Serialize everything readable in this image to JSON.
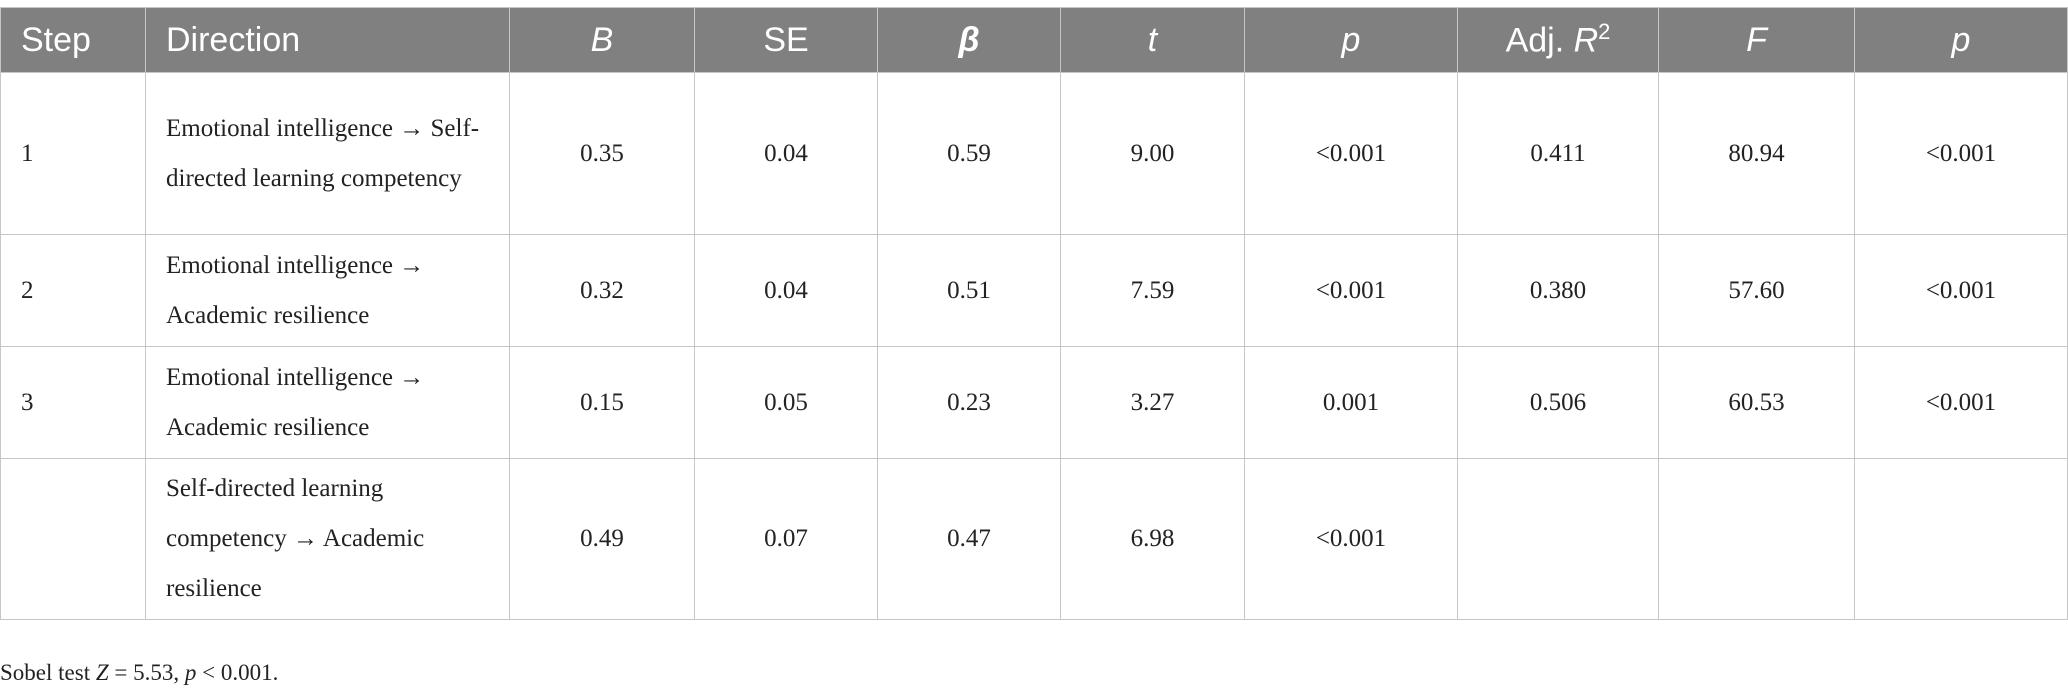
{
  "table": {
    "header": [
      "Step",
      "Direction",
      "B",
      "SE",
      "β",
      "t",
      "p",
      {
        "prefix": "Adj. ",
        "var": "R",
        "sup": "2"
      },
      "F",
      "p"
    ],
    "rows": [
      {
        "step": "1",
        "direction": "Emotional intelligence → Self-directed learning competency",
        "B": "0.35",
        "SE": "0.04",
        "beta": "0.59",
        "t": "9.00",
        "p": "<0.001",
        "adj_r2": "0.411",
        "F": "80.94",
        "p_model": "<0.001"
      },
      {
        "step": "2",
        "direction": "Emotional intelligence → Academic resilience",
        "B": "0.32",
        "SE": "0.04",
        "beta": "0.51",
        "t": "7.59",
        "p": "<0.001",
        "adj_r2": "0.380",
        "F": "57.60",
        "p_model": "<0.001"
      },
      {
        "step": "3",
        "direction": "Emotional intelligence → Academic resilience",
        "B": "0.15",
        "SE": "0.05",
        "beta": "0.23",
        "t": "3.27",
        "p": "0.001",
        "adj_r2": "0.506",
        "F": "60.53",
        "p_model": "<0.001"
      },
      {
        "direction": "Self-directed learning competency → Academic resilience",
        "B": "0.49",
        "SE": "0.07",
        "beta": "0.47",
        "t": "6.98",
        "p": "<0.001"
      }
    ]
  },
  "footnote": [
    "Sobel test ",
    "Z",
    " = 5.53, ",
    "p",
    " < 0.001."
  ]
}
